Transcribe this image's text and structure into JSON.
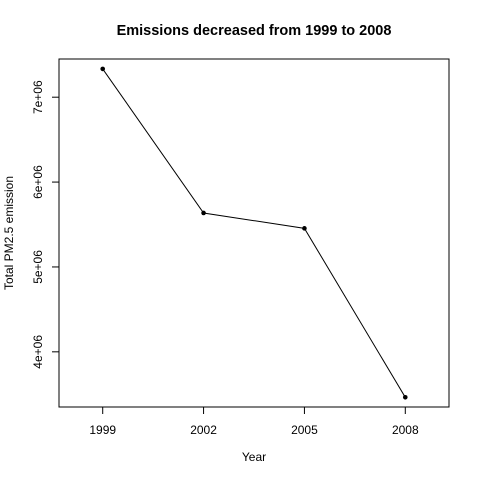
{
  "chart_data": {
    "type": "line",
    "title": "Emissions decreased from 1999 to 2008",
    "xlabel": "Year",
    "ylabel": "Total PM2.5 emission",
    "x_tick_labels": [
      "1999",
      "2002",
      "2005",
      "2008"
    ],
    "y_tick_labels": [
      "4e+06",
      "5e+06",
      "6e+06",
      "7e+06"
    ],
    "y_ticks": [
      4000000,
      5000000,
      6000000,
      7000000
    ],
    "xlim": [
      1997.7,
      2009.3
    ],
    "ylim": [
      3350000,
      7450000
    ],
    "grid": false,
    "legend": "none",
    "colors": {
      "line": "#000000",
      "points": "#000000",
      "axis": "#000000"
    },
    "series": [
      {
        "x": [
          1999,
          2002,
          2005,
          2008
        ],
        "values": [
          7332967,
          5635780,
          5454703,
          3464206
        ]
      }
    ]
  }
}
